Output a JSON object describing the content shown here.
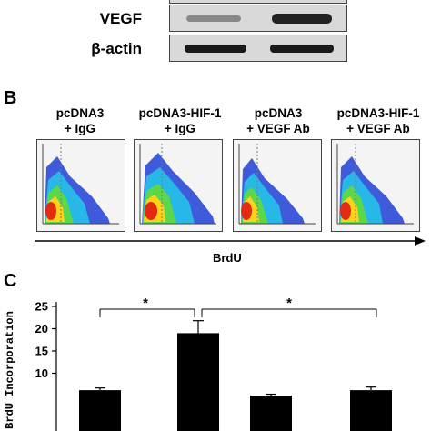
{
  "panel_a": {
    "rows": [
      {
        "label": "VEGF"
      },
      {
        "label": "β-actin"
      }
    ]
  },
  "panel_b": {
    "letter": "B",
    "titles": [
      {
        "line1": "pcDNA3",
        "line2": "+ IgG"
      },
      {
        "line1": "pcDNA3-HIF-1",
        "line2": "+ IgG"
      },
      {
        "line1": "pcDNA3",
        "line2": "+ VEGF Ab"
      },
      {
        "line1": "pcDNA3-HIF-1",
        "line2": "+ VEGF Ab"
      }
    ],
    "x_axis_label": "BrdU"
  },
  "panel_c": {
    "letter": "C",
    "significance": [
      "*",
      "*"
    ]
  },
  "chart_data": {
    "type": "bar",
    "title": "",
    "xlabel": "",
    "ylabel": "BrdU Incorporation",
    "ylim": [
      5,
      25
    ],
    "yticks": [
      25,
      20,
      15,
      10
    ],
    "categories": [
      "pcDNA3 + IgG",
      "pcDNA3-HIF-1 + IgG",
      "pcDNA3 + VEGF Ab",
      "pcDNA3-HIF-1 + VEGF Ab"
    ],
    "values": [
      6.2,
      19.0,
      5.0,
      6.2
    ],
    "errors": [
      0.5,
      2.8,
      0.3,
      0.7
    ],
    "grid": false,
    "bar_color": "#000000"
  }
}
